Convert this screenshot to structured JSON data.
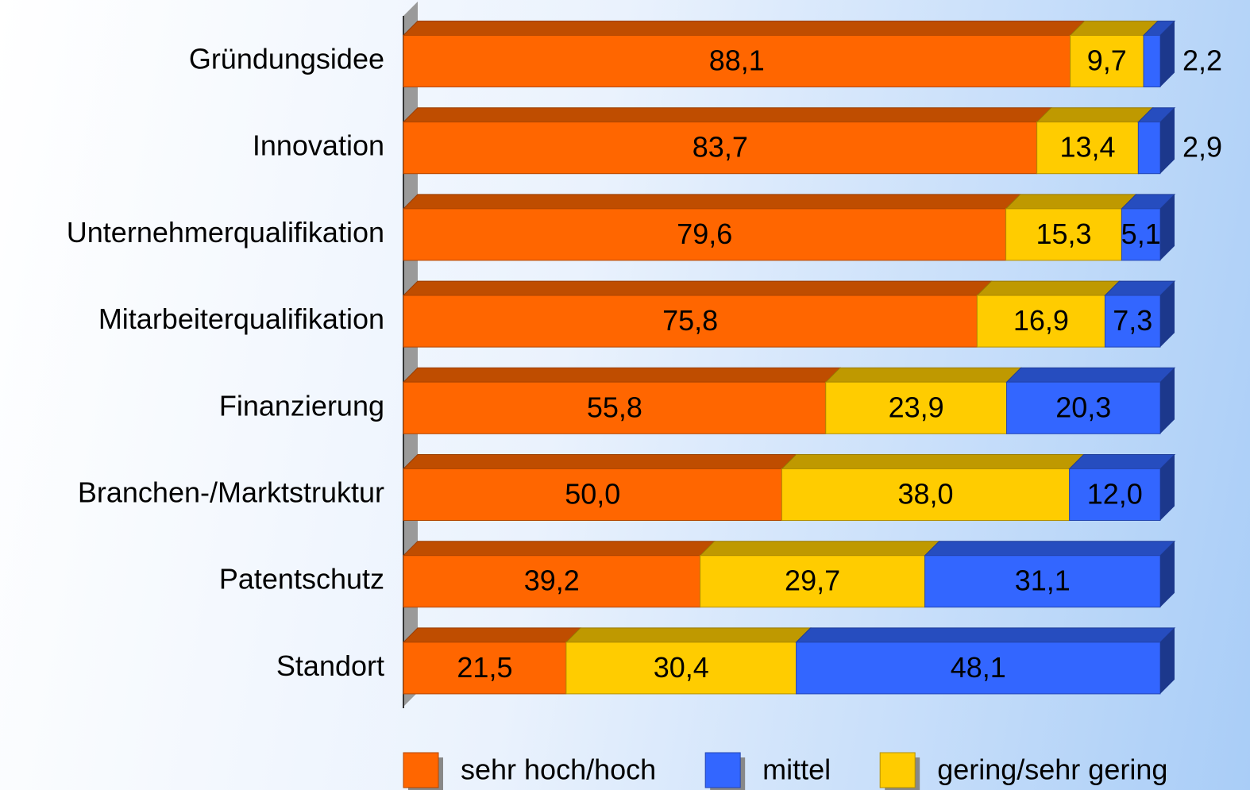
{
  "chart_data": {
    "type": "bar",
    "orientation": "horizontal",
    "stacked": true,
    "categories": [
      "Gründungsidee",
      "Innovation",
      "Unternehmerqualifikation",
      "Mitarbeiterqualifikation",
      "Finanzierung",
      "Branchen-/Marktstruktur",
      "Patentschutz",
      "Standort"
    ],
    "series": [
      {
        "name": "sehr hoch/hoch",
        "color": "#ff6600",
        "values": [
          88.1,
          83.7,
          79.6,
          75.8,
          55.8,
          50.0,
          39.2,
          21.5
        ],
        "value_labels": [
          "88,1",
          "83,7",
          "79,6",
          "75,8",
          "55,8",
          "50,0",
          "39,2",
          "21,5"
        ]
      },
      {
        "name": "mittel",
        "color": "#3366ff",
        "values": [
          2.2,
          2.9,
          5.1,
          7.3,
          20.3,
          12.0,
          31.1,
          48.1
        ],
        "value_labels": [
          "2,2",
          "2,9",
          "5,1",
          "7,3",
          "20,3",
          "12,0",
          "31,1",
          "48,1"
        ]
      },
      {
        "name": "gering/sehr gering",
        "color": "#ffcc00",
        "values": [
          9.7,
          13.4,
          15.3,
          16.9,
          23.9,
          38.0,
          29.7,
          30.4
        ],
        "value_labels": [
          "9,7",
          "13,4",
          "15,3",
          "16,9",
          "23,9",
          "38,0",
          "29,7",
          "30,4"
        ]
      }
    ]
  }
}
